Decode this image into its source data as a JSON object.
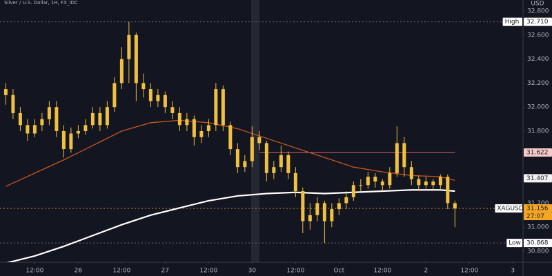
{
  "chart_data": {
    "type": "candlestick",
    "title": "Silver / U.S. Dollar, 1H, FX_IDC",
    "currency": "USD",
    "color": "#f0c040",
    "x": [
      0,
      1,
      2,
      3,
      4,
      5,
      6,
      7,
      8,
      9,
      10,
      11,
      12,
      13,
      14,
      15,
      16,
      17,
      18,
      19,
      20,
      21,
      22,
      23,
      24,
      25,
      26,
      27,
      28,
      29,
      30,
      31,
      32,
      33,
      34,
      35,
      36,
      37,
      38,
      39,
      40,
      41,
      42,
      43,
      44,
      45,
      46,
      47,
      48,
      49,
      50,
      51,
      52,
      53,
      54,
      55,
      56,
      57,
      58,
      59,
      60,
      61,
      62
    ],
    "open": [
      32.15,
      32.1,
      31.95,
      31.85,
      31.78,
      31.85,
      31.9,
      32.0,
      31.8,
      31.65,
      31.78,
      31.8,
      31.85,
      31.95,
      31.85,
      32.0,
      32.2,
      32.4,
      32.6,
      32.2,
      32.15,
      32.05,
      32.1,
      32.0,
      31.95,
      31.85,
      31.9,
      31.75,
      31.8,
      31.85,
      32.15,
      31.85,
      31.65,
      31.5,
      31.55,
      31.75,
      31.7,
      31.45,
      31.5,
      31.6,
      31.45,
      31.3,
      31.05,
      31.1,
      31.2,
      31.05,
      31.15,
      31.2,
      31.25,
      31.35,
      31.35,
      31.42,
      31.38,
      31.35,
      31.45,
      31.7,
      31.5,
      31.4,
      31.35,
      31.38,
      31.35,
      31.42,
      31.2
    ],
    "high": [
      32.2,
      32.15,
      32.0,
      31.9,
      31.9,
      31.95,
      32.05,
      32.05,
      31.85,
      31.83,
      31.85,
      31.9,
      32.0,
      32.0,
      32.05,
      32.25,
      32.5,
      32.71,
      32.62,
      32.28,
      32.2,
      32.15,
      32.13,
      32.05,
      32.0,
      31.95,
      31.93,
      31.85,
      31.9,
      32.2,
      32.18,
      31.88,
      31.7,
      31.6,
      31.84,
      31.8,
      31.72,
      31.55,
      31.68,
      31.63,
      31.5,
      31.33,
      31.2,
      31.25,
      31.22,
      31.2,
      31.24,
      31.3,
      31.38,
      31.4,
      31.46,
      31.45,
      31.4,
      31.5,
      31.84,
      31.75,
      31.55,
      31.43,
      31.42,
      31.4,
      31.44,
      31.44,
      31.22
    ],
    "low": [
      32.02,
      31.9,
      31.8,
      31.72,
      31.75,
      31.8,
      31.85,
      31.75,
      31.58,
      31.62,
      31.74,
      31.77,
      31.82,
      31.8,
      31.82,
      31.96,
      32.15,
      32.2,
      32.05,
      32.08,
      32.0,
      32.0,
      31.95,
      31.9,
      31.8,
      31.8,
      31.68,
      31.7,
      31.75,
      31.8,
      31.8,
      31.6,
      31.45,
      31.46,
      31.5,
      31.64,
      31.38,
      31.4,
      31.46,
      31.4,
      31.25,
      30.95,
      30.98,
      31.05,
      30.868,
      31.0,
      31.1,
      31.15,
      31.22,
      31.3,
      31.32,
      31.33,
      31.3,
      31.32,
      31.42,
      31.42,
      31.35,
      31.3,
      31.32,
      31.3,
      31.32,
      31.15,
      31.0
    ],
    "close": [
      32.1,
      31.95,
      31.85,
      31.78,
      31.85,
      31.9,
      32.0,
      31.8,
      31.65,
      31.78,
      31.8,
      31.85,
      31.95,
      31.85,
      32.0,
      32.2,
      32.4,
      32.6,
      32.2,
      32.15,
      32.05,
      32.1,
      32.0,
      31.95,
      31.85,
      31.9,
      31.75,
      31.8,
      31.85,
      32.15,
      31.85,
      31.65,
      31.5,
      31.55,
      31.75,
      31.7,
      31.45,
      31.5,
      31.6,
      31.45,
      31.3,
      31.05,
      31.1,
      31.2,
      31.05,
      31.15,
      31.2,
      31.25,
      31.35,
      31.35,
      31.42,
      31.38,
      31.35,
      31.45,
      31.7,
      31.5,
      31.4,
      31.35,
      31.38,
      31.35,
      31.42,
      31.2,
      31.156
    ],
    "lines": [
      {
        "color": "#c8561e",
        "x": [
          0,
          4,
          8,
          12,
          16,
          20,
          24,
          28,
          32,
          36,
          40,
          44,
          48,
          52,
          56,
          60,
          62
        ],
        "values": [
          31.34,
          31.45,
          31.56,
          31.68,
          31.8,
          31.87,
          31.89,
          31.87,
          31.82,
          31.74,
          31.66,
          31.58,
          31.5,
          31.46,
          31.43,
          31.42,
          31.39
        ]
      },
      {
        "color": "#ffffff",
        "x": [
          0,
          4,
          8,
          12,
          16,
          20,
          24,
          28,
          32,
          36,
          40,
          44,
          48,
          52,
          56,
          60,
          62
        ],
        "values": [
          30.7,
          30.76,
          30.84,
          30.93,
          31.02,
          31.1,
          31.16,
          31.22,
          31.26,
          31.28,
          31.29,
          31.28,
          31.29,
          31.3,
          31.31,
          31.31,
          31.3
        ]
      }
    ],
    "levels": [
      {
        "value": 32.71,
        "color": "#6b6f7a",
        "dash": true
      },
      {
        "value": 31.622,
        "color": "#d46a6a",
        "dash": false,
        "x_range": [
          35,
          62
        ]
      },
      {
        "value": 31.156,
        "color": "#d08a2a",
        "dash": true
      },
      {
        "value": 30.868,
        "color": "#6b6f7a",
        "dash": true
      }
    ],
    "price_tags": [
      {
        "name": "High",
        "value": 32.71,
        "label": "32.710",
        "bg": "#ffffff"
      },
      {
        "value": 31.622,
        "label": "31.622",
        "bg": "#f6c9c9"
      },
      {
        "value": 31.407,
        "label": "31.407",
        "bg": "#f2f2f2"
      },
      {
        "name": "XAGUSD",
        "value": 31.156,
        "label": "31.156",
        "sub": "27:07",
        "bg": "#f5a623"
      },
      {
        "name": "Low",
        "value": 30.868,
        "label": "30.868",
        "bg": "#ffffff"
      }
    ],
    "xlim": [
      -0.8,
      71.4
    ],
    "xticks": [
      {
        "value": 4,
        "label": "12:00"
      },
      {
        "value": 10,
        "label": "26"
      },
      {
        "value": 16,
        "label": "12:00"
      },
      {
        "value": 22,
        "label": "27"
      },
      {
        "value": 28,
        "label": "12:00"
      },
      {
        "value": 34,
        "label": "30"
      },
      {
        "value": 40,
        "label": "12:00"
      },
      {
        "value": 46,
        "label": "Oct"
      },
      {
        "value": 52,
        "label": "12:00"
      },
      {
        "value": 58,
        "label": "2"
      },
      {
        "value": 64,
        "label": "12:00"
      },
      {
        "value": 70,
        "label": "3"
      }
    ],
    "ylim": [
      30.708,
      32.892
    ],
    "yticks": [
      {
        "value": 32.8,
        "label": "32.800"
      },
      {
        "value": 32.6,
        "label": "32.600"
      },
      {
        "value": 32.4,
        "label": "32.400"
      },
      {
        "value": 32.2,
        "label": "32.200"
      },
      {
        "value": 32.0,
        "label": "32.000"
      },
      {
        "value": 31.8,
        "label": "31.800"
      },
      {
        "value": 31.2,
        "label": "31.200"
      },
      {
        "value": 31.0,
        "label": "31.000"
      },
      {
        "value": 30.8,
        "label": "30.800"
      }
    ]
  }
}
